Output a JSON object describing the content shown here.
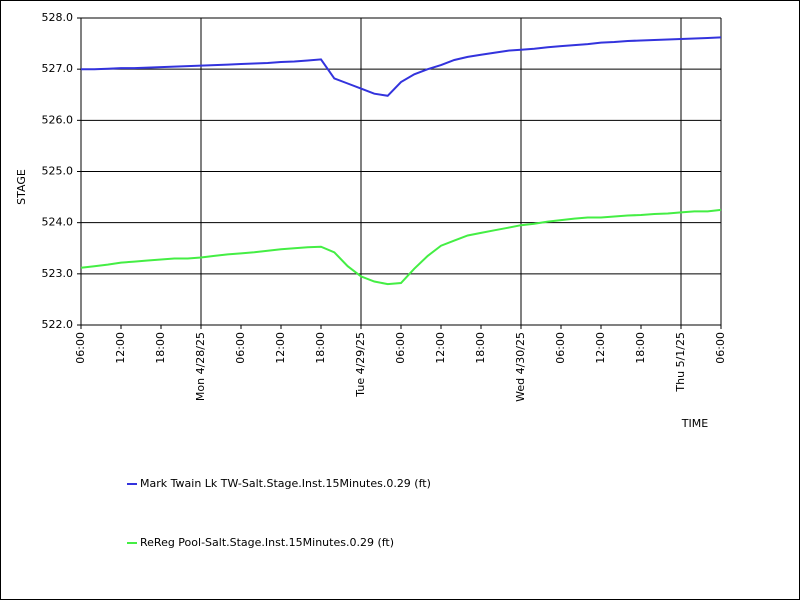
{
  "chart_data": {
    "type": "line",
    "xlabel": "TIME",
    "ylabel": "STAGE",
    "x": [
      "2025-04-27T06:00",
      "2025-04-27T08:00",
      "2025-04-27T10:00",
      "2025-04-27T12:00",
      "2025-04-27T14:00",
      "2025-04-27T16:00",
      "2025-04-27T18:00",
      "2025-04-27T20:00",
      "2025-04-27T22:00",
      "2025-04-28T00:00",
      "2025-04-28T02:00",
      "2025-04-28T04:00",
      "2025-04-28T06:00",
      "2025-04-28T08:00",
      "2025-04-28T10:00",
      "2025-04-28T12:00",
      "2025-04-28T14:00",
      "2025-04-28T16:00",
      "2025-04-28T18:00",
      "2025-04-28T20:00",
      "2025-04-28T22:00",
      "2025-04-29T00:00",
      "2025-04-29T02:00",
      "2025-04-29T04:00",
      "2025-04-29T06:00",
      "2025-04-29T08:00",
      "2025-04-29T10:00",
      "2025-04-29T12:00",
      "2025-04-29T14:00",
      "2025-04-29T16:00",
      "2025-04-29T18:00",
      "2025-04-29T20:00",
      "2025-04-29T22:00",
      "2025-04-30T00:00",
      "2025-04-30T02:00",
      "2025-04-30T04:00",
      "2025-04-30T06:00",
      "2025-04-30T08:00",
      "2025-04-30T10:00",
      "2025-04-30T12:00",
      "2025-04-30T14:00",
      "2025-04-30T16:00",
      "2025-04-30T18:00",
      "2025-04-30T20:00",
      "2025-04-30T22:00",
      "2025-05-01T00:00",
      "2025-05-01T02:00",
      "2025-05-01T04:00",
      "2025-05-01T06:00"
    ],
    "series": [
      {
        "name": "Mark Twain Lk TW-Salt.Stage.Inst.15Minutes.0.29 (ft)",
        "color": "#3333dd",
        "values": [
          527.0,
          527.0,
          527.01,
          527.02,
          527.02,
          527.03,
          527.04,
          527.05,
          527.06,
          527.07,
          527.08,
          527.09,
          527.1,
          527.11,
          527.12,
          527.14,
          527.15,
          527.17,
          527.19,
          526.82,
          526.72,
          526.62,
          526.52,
          526.48,
          526.75,
          526.9,
          527.0,
          527.08,
          527.18,
          527.24,
          527.28,
          527.32,
          527.36,
          527.38,
          527.4,
          527.43,
          527.45,
          527.47,
          527.49,
          527.52,
          527.53,
          527.55,
          527.56,
          527.57,
          527.58,
          527.59,
          527.6,
          527.61,
          527.62
        ]
      },
      {
        "name": "ReReg Pool-Salt.Stage.Inst.15Minutes.0.29 (ft)",
        "color": "#44ee44",
        "values": [
          523.12,
          523.15,
          523.18,
          523.22,
          523.24,
          523.26,
          523.28,
          523.3,
          523.3,
          523.32,
          523.35,
          523.38,
          523.4,
          523.42,
          523.45,
          523.48,
          523.5,
          523.52,
          523.53,
          523.42,
          523.15,
          522.95,
          522.85,
          522.8,
          522.82,
          523.1,
          523.35,
          523.55,
          523.65,
          523.75,
          523.8,
          523.85,
          523.9,
          523.95,
          523.98,
          524.02,
          524.05,
          524.08,
          524.1,
          524.1,
          524.12,
          524.14,
          524.15,
          524.17,
          524.18,
          524.2,
          524.22,
          524.22,
          524.25
        ]
      }
    ],
    "xlim": [
      "2025-04-27T06:00",
      "2025-05-01T06:00"
    ],
    "xticks": [
      {
        "value": "2025-04-27T06:00",
        "label": "06:00"
      },
      {
        "value": "2025-04-27T12:00",
        "label": "12:00"
      },
      {
        "value": "2025-04-27T18:00",
        "label": "18:00"
      },
      {
        "value": "2025-04-28T00:00",
        "label": "Mon 4/28/25"
      },
      {
        "value": "2025-04-28T06:00",
        "label": "06:00"
      },
      {
        "value": "2025-04-28T12:00",
        "label": "12:00"
      },
      {
        "value": "2025-04-28T18:00",
        "label": "18:00"
      },
      {
        "value": "2025-04-29T00:00",
        "label": "Tue 4/29/25"
      },
      {
        "value": "2025-04-29T06:00",
        "label": "06:00"
      },
      {
        "value": "2025-04-29T12:00",
        "label": "12:00"
      },
      {
        "value": "2025-04-29T18:00",
        "label": "18:00"
      },
      {
        "value": "2025-04-30T00:00",
        "label": "Wed 4/30/25"
      },
      {
        "value": "2025-04-30T06:00",
        "label": "06:00"
      },
      {
        "value": "2025-04-30T12:00",
        "label": "12:00"
      },
      {
        "value": "2025-04-30T18:00",
        "label": "18:00"
      },
      {
        "value": "2025-05-01T00:00",
        "label": "Thu 5/1/25"
      },
      {
        "value": "2025-05-01T06:00",
        "label": "06:00"
      }
    ],
    "ylim": [
      522,
      528
    ],
    "yticks": [
      {
        "value": 522,
        "label": "522.0"
      },
      {
        "value": 523,
        "label": "523.0"
      },
      {
        "value": 524,
        "label": "524.0"
      },
      {
        "value": 525,
        "label": "525.0"
      },
      {
        "value": 526,
        "label": "526.0"
      },
      {
        "value": 527,
        "label": "527.0"
      },
      {
        "value": 528,
        "label": "528.0"
      }
    ],
    "grid": true
  }
}
